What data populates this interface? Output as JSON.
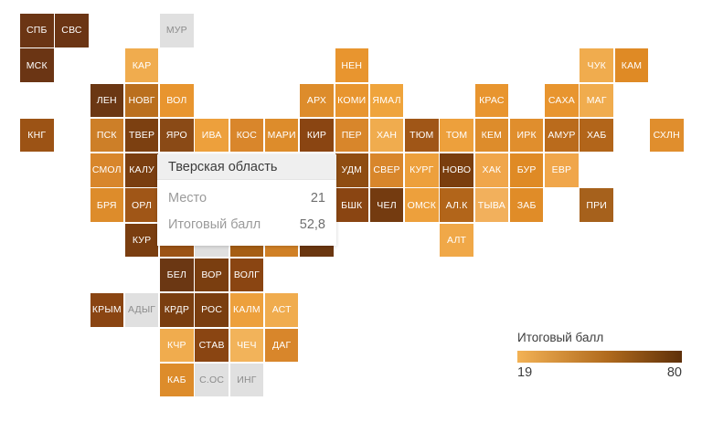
{
  "tooltip": {
    "title": "Тверская область",
    "rows": [
      {
        "label": "Место",
        "value": "21"
      },
      {
        "label": "Итоговый балл",
        "value": "52,8"
      }
    ]
  },
  "legend": {
    "title": "Итоговый балл",
    "min": "19",
    "max": "80",
    "gradient_start": "#F3B255",
    "gradient_end": "#5E3009"
  },
  "chart_data": {
    "type": "heatmap",
    "subtype": "tile-cartogram-russia-regions",
    "legend_title": "Итоговый балл",
    "scale": {
      "min": 19,
      "max": 80,
      "color_min": "#F3B255",
      "color_max": "#5E3009"
    },
    "no_data_color": "#E0E0E0",
    "selected_region": {
      "name": "Тверская область",
      "place": 21,
      "score": "52,8"
    },
    "tiles": [
      {
        "label": "СПБ",
        "col": 0,
        "row": 0,
        "color": "#6B3514",
        "no_data": false
      },
      {
        "label": "СВС",
        "col": 1,
        "row": 0,
        "color": "#6B3514",
        "no_data": false
      },
      {
        "label": "МУР",
        "col": 4,
        "row": 0,
        "color": "#E0E0E0",
        "no_data": true
      },
      {
        "label": "МСК",
        "col": 0,
        "row": 1,
        "color": "#6B3514",
        "no_data": false
      },
      {
        "label": "КАР",
        "col": 3,
        "row": 1,
        "color": "#F0AC4E",
        "no_data": false
      },
      {
        "label": "НЕН",
        "col": 9,
        "row": 1,
        "color": "#E8952F",
        "no_data": false
      },
      {
        "label": "ЧУК",
        "col": 16,
        "row": 1,
        "color": "#F0AC4E",
        "no_data": false
      },
      {
        "label": "КАМ",
        "col": 17,
        "row": 1,
        "color": "#DF8A25",
        "no_data": false
      },
      {
        "label": "ЛЕН",
        "col": 2,
        "row": 2,
        "color": "#6B3713",
        "no_data": false
      },
      {
        "label": "НОВГ",
        "col": 3,
        "row": 2,
        "color": "#BA6F1E",
        "no_data": false
      },
      {
        "label": "ВОЛ",
        "col": 4,
        "row": 2,
        "color": "#E8952F",
        "no_data": false
      },
      {
        "label": "АРХ",
        "col": 8,
        "row": 2,
        "color": "#DD8C2B",
        "no_data": false
      },
      {
        "label": "КОМИ",
        "col": 9,
        "row": 2,
        "color": "#E8952F",
        "no_data": false
      },
      {
        "label": "ЯМАЛ",
        "col": 10,
        "row": 2,
        "color": "#EFA43C",
        "no_data": false
      },
      {
        "label": "КРАС",
        "col": 13,
        "row": 2,
        "color": "#E8952F",
        "no_data": false
      },
      {
        "label": "САХА",
        "col": 15,
        "row": 2,
        "color": "#E8952F",
        "no_data": false
      },
      {
        "label": "МАГ",
        "col": 16,
        "row": 2,
        "color": "#F0AC4E",
        "no_data": false
      },
      {
        "label": "КНГ",
        "col": 0,
        "row": 3,
        "color": "#9C5315",
        "no_data": false
      },
      {
        "label": "ПСК",
        "col": 2,
        "row": 3,
        "color": "#CD7F28",
        "no_data": false
      },
      {
        "label": "ТВЕР",
        "col": 3,
        "row": 3,
        "color": "#7C4011",
        "no_data": false
      },
      {
        "label": "ЯРО",
        "col": 4,
        "row": 3,
        "color": "#8A4A16",
        "no_data": false
      },
      {
        "label": "ИВА",
        "col": 5,
        "row": 3,
        "color": "#EDA03C",
        "no_data": false
      },
      {
        "label": "КОС",
        "col": 6,
        "row": 3,
        "color": "#D9862B",
        "no_data": false
      },
      {
        "label": "МАРИ",
        "col": 7,
        "row": 3,
        "color": "#DD8C2B",
        "no_data": false
      },
      {
        "label": "КИР",
        "col": 8,
        "row": 3,
        "color": "#8A4512",
        "no_data": false
      },
      {
        "label": "ПЕР",
        "col": 9,
        "row": 3,
        "color": "#D8862B",
        "no_data": false
      },
      {
        "label": "ХАН",
        "col": 10,
        "row": 3,
        "color": "#F0AC4E",
        "no_data": false
      },
      {
        "label": "ТЮМ",
        "col": 11,
        "row": 3,
        "color": "#A05617",
        "no_data": false
      },
      {
        "label": "ТОМ",
        "col": 12,
        "row": 3,
        "color": "#EDA03C",
        "no_data": false
      },
      {
        "label": "КЕМ",
        "col": 13,
        "row": 3,
        "color": "#DD8C2B",
        "no_data": false
      },
      {
        "label": "ИРК",
        "col": 14,
        "row": 3,
        "color": "#E08E2D",
        "no_data": false
      },
      {
        "label": "АМУР",
        "col": 15,
        "row": 3,
        "color": "#BA6B1C",
        "no_data": false
      },
      {
        "label": "ХАБ",
        "col": 16,
        "row": 3,
        "color": "#B2651A",
        "no_data": false
      },
      {
        "label": "СХЛН",
        "col": 18,
        "row": 3,
        "color": "#E08E2D",
        "no_data": false
      },
      {
        "label": "СМОЛ",
        "col": 2,
        "row": 4,
        "color": "#D8862B",
        "no_data": false
      },
      {
        "label": "КАЛУ",
        "col": 3,
        "row": 4,
        "color": "#7A3E10",
        "no_data": false
      },
      {
        "label": "УДМ",
        "col": 9,
        "row": 4,
        "color": "#8F4D12",
        "no_data": false
      },
      {
        "label": "СВЕР",
        "col": 10,
        "row": 4,
        "color": "#D8862B",
        "no_data": false
      },
      {
        "label": "КУРГ",
        "col": 11,
        "row": 4,
        "color": "#EDA03C",
        "no_data": false
      },
      {
        "label": "НОВО",
        "col": 12,
        "row": 4,
        "color": "#7A3E0E",
        "no_data": false
      },
      {
        "label": "ХАК",
        "col": 13,
        "row": 4,
        "color": "#F0A64A",
        "no_data": false
      },
      {
        "label": "БУР",
        "col": 14,
        "row": 4,
        "color": "#DF8A25",
        "no_data": false
      },
      {
        "label": "ЕВР",
        "col": 15,
        "row": 4,
        "color": "#F0A64A",
        "no_data": false
      },
      {
        "label": "БРЯ",
        "col": 2,
        "row": 5,
        "color": "#DD8C2B",
        "no_data": false
      },
      {
        "label": "ОРЛ",
        "col": 3,
        "row": 5,
        "color": "#A05617",
        "no_data": false
      },
      {
        "label": "БШК",
        "col": 9,
        "row": 5,
        "color": "#8A4512",
        "no_data": false
      },
      {
        "label": "ЧЕЛ",
        "col": 10,
        "row": 5,
        "color": "#743B10",
        "no_data": false
      },
      {
        "label": "ОМСК",
        "col": 11,
        "row": 5,
        "color": "#EDA03C",
        "no_data": false
      },
      {
        "label": "АЛ.К",
        "col": 12,
        "row": 5,
        "color": "#B2651A",
        "no_data": false
      },
      {
        "label": "ТЫВА",
        "col": 13,
        "row": 5,
        "color": "#F2B05C",
        "no_data": false
      },
      {
        "label": "ЗАБ",
        "col": 14,
        "row": 5,
        "color": "#E08C28",
        "no_data": false
      },
      {
        "label": "ПРИ",
        "col": 16,
        "row": 5,
        "color": "#A6611C",
        "no_data": false
      },
      {
        "label": "КУР",
        "col": 3,
        "row": 6,
        "color": "#7A3E10",
        "no_data": false
      },
      {
        "label": "",
        "col": 4,
        "row": 6,
        "color": "#9C5315",
        "no_data": false
      },
      {
        "label": "",
        "col": 5,
        "row": 6,
        "color": "#E0E0E0",
        "no_data": true
      },
      {
        "label": "",
        "col": 6,
        "row": 6,
        "color": "#A65E14",
        "no_data": false
      },
      {
        "label": "",
        "col": 7,
        "row": 6,
        "color": "#D08026",
        "no_data": false
      },
      {
        "label": "",
        "col": 8,
        "row": 6,
        "color": "#6B3710",
        "no_data": false
      },
      {
        "label": "АЛТ",
        "col": 12,
        "row": 6,
        "color": "#F0A848",
        "no_data": false
      },
      {
        "label": "БЕЛ",
        "col": 4,
        "row": 7,
        "color": "#6B3713",
        "no_data": false
      },
      {
        "label": "ВОР",
        "col": 5,
        "row": 7,
        "color": "#7A3E10",
        "no_data": false
      },
      {
        "label": "ВОЛГ",
        "col": 6,
        "row": 7,
        "color": "#8A4512",
        "no_data": false
      },
      {
        "label": "КРЫМ",
        "col": 2,
        "row": 8,
        "color": "#8A4512",
        "no_data": false
      },
      {
        "label": "АДЫГ",
        "col": 3,
        "row": 8,
        "color": "#E0E0E0",
        "no_data": true
      },
      {
        "label": "КРДР",
        "col": 4,
        "row": 8,
        "color": "#7A3E10",
        "no_data": false
      },
      {
        "label": "РОС",
        "col": 5,
        "row": 8,
        "color": "#7A3E10",
        "no_data": false
      },
      {
        "label": "КАЛМ",
        "col": 6,
        "row": 8,
        "color": "#EDA03C",
        "no_data": false
      },
      {
        "label": "АСТ",
        "col": 7,
        "row": 8,
        "color": "#F0AC4E",
        "no_data": false
      },
      {
        "label": "КЧР",
        "col": 4,
        "row": 9,
        "color": "#F0AC4E",
        "no_data": false
      },
      {
        "label": "СТАВ",
        "col": 5,
        "row": 9,
        "color": "#8A4512",
        "no_data": false
      },
      {
        "label": "ЧЕЧ",
        "col": 6,
        "row": 9,
        "color": "#F2B35A",
        "no_data": false
      },
      {
        "label": "ДАГ",
        "col": 7,
        "row": 9,
        "color": "#D8862B",
        "no_data": false
      },
      {
        "label": "КАБ",
        "col": 4,
        "row": 10,
        "color": "#DD8C2B",
        "no_data": false
      },
      {
        "label": "С.ОС",
        "col": 5,
        "row": 10,
        "color": "#E0E0E0",
        "no_data": true
      },
      {
        "label": "ИНГ",
        "col": 6,
        "row": 10,
        "color": "#E0E0E0",
        "no_data": true
      }
    ]
  }
}
